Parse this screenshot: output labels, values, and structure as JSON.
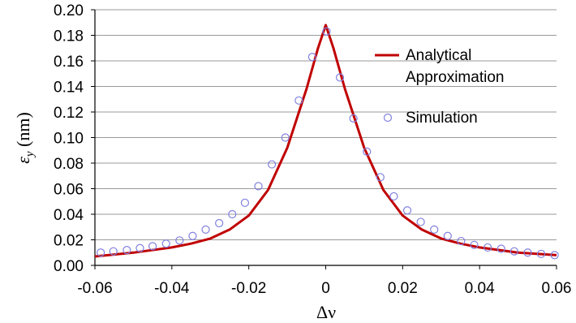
{
  "chart_data": {
    "type": "line",
    "xlabel": "Δν",
    "ylabel": "εy (nm)",
    "ylabel_symbol": "ε",
    "ylabel_subscript": "y",
    "ylabel_unit": " (nm)",
    "xlim": [
      -0.06,
      0.06
    ],
    "ylim": [
      0,
      0.2
    ],
    "x_ticks": [
      -0.06,
      -0.04,
      -0.02,
      0,
      0.02,
      0.04,
      0.06
    ],
    "x_tick_labels": [
      "-0.06",
      "-0.04",
      "-0.02",
      "0",
      "0.02",
      "0.04",
      "0.06"
    ],
    "y_ticks": [
      0,
      0.02,
      0.04,
      0.06,
      0.08,
      0.1,
      0.12,
      0.14,
      0.16,
      0.18,
      0.2
    ],
    "y_tick_labels": [
      "0.00",
      "0.02",
      "0.04",
      "0.06",
      "0.08",
      "0.10",
      "0.12",
      "0.14",
      "0.16",
      "0.18",
      "0.20"
    ],
    "grid": "horizontal",
    "legend_position": "right",
    "series": [
      {
        "name": "Analytical Approximation",
        "legend_lines": [
          "Analytical",
          "Approximation"
        ],
        "style": "line",
        "color": "#c00000",
        "x": [
          -0.06,
          -0.05,
          -0.04,
          -0.035,
          -0.03,
          -0.025,
          -0.02,
          -0.015,
          -0.01,
          -0.005,
          -0.002,
          0,
          0.002,
          0.005,
          0.01,
          0.015,
          0.02,
          0.025,
          0.03,
          0.035,
          0.04,
          0.05,
          0.06
        ],
        "y": [
          0.007,
          0.01,
          0.014,
          0.017,
          0.021,
          0.028,
          0.039,
          0.059,
          0.092,
          0.138,
          0.17,
          0.188,
          0.17,
          0.138,
          0.092,
          0.059,
          0.039,
          0.028,
          0.021,
          0.017,
          0.014,
          0.01,
          0.008
        ]
      },
      {
        "name": "Simulation",
        "legend_lines": [
          "Simulation"
        ],
        "style": "markers",
        "color": "#8080e0",
        "x": [
          -0.0585,
          -0.0552,
          -0.0517,
          -0.0483,
          -0.045,
          -0.0415,
          -0.038,
          -0.0346,
          -0.0312,
          -0.0277,
          -0.0243,
          -0.021,
          -0.0175,
          -0.014,
          -0.0105,
          -0.007,
          -0.0035,
          0.0002,
          0.0037,
          0.0072,
          0.0107,
          0.0142,
          0.0177,
          0.0212,
          0.0247,
          0.0282,
          0.0317,
          0.0352,
          0.0386,
          0.0421,
          0.0456,
          0.049,
          0.0525,
          0.056,
          0.0595
        ],
        "y": [
          0.01,
          0.011,
          0.012,
          0.0135,
          0.015,
          0.017,
          0.0195,
          0.023,
          0.028,
          0.033,
          0.04,
          0.049,
          0.062,
          0.079,
          0.1,
          0.129,
          0.163,
          0.183,
          0.147,
          0.115,
          0.089,
          0.069,
          0.054,
          0.043,
          0.034,
          0.028,
          0.023,
          0.019,
          0.016,
          0.014,
          0.013,
          0.011,
          0.01,
          0.009,
          0.008
        ]
      }
    ]
  }
}
